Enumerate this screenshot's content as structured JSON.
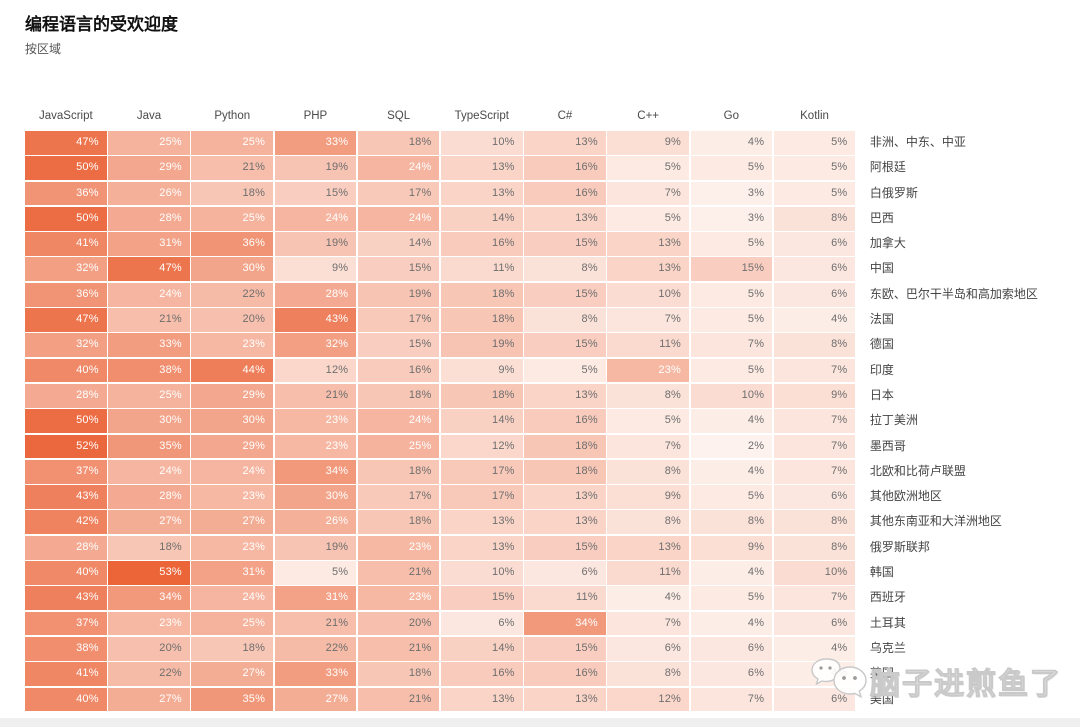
{
  "page": {
    "title": "编程语言的受欢迎度",
    "subtitle": "按区域"
  },
  "watermark": {
    "text": "脑子进煎鱼了"
  },
  "chart_data": {
    "type": "heatmap",
    "title": "编程语言的受欢迎度",
    "subtitle": "按区域",
    "unit": "%",
    "columns": [
      "JavaScript",
      "Java",
      "Python",
      "PHP",
      "SQL",
      "TypeScript",
      "C#",
      "C++",
      "Go",
      "Kotlin"
    ],
    "rows": [
      {
        "region": "非洲、中东、中亚",
        "values": [
          47,
          25,
          25,
          33,
          18,
          10,
          13,
          9,
          4,
          5
        ]
      },
      {
        "region": "阿根廷",
        "values": [
          50,
          29,
          21,
          19,
          24,
          13,
          16,
          5,
          5,
          5
        ]
      },
      {
        "region": "白俄罗斯",
        "values": [
          36,
          26,
          18,
          15,
          17,
          13,
          16,
          7,
          3,
          5
        ]
      },
      {
        "region": "巴西",
        "values": [
          50,
          28,
          25,
          24,
          24,
          14,
          13,
          5,
          3,
          8
        ]
      },
      {
        "region": "加拿大",
        "values": [
          41,
          31,
          36,
          19,
          14,
          16,
          15,
          13,
          5,
          6
        ]
      },
      {
        "region": "中国",
        "values": [
          32,
          47,
          30,
          9,
          15,
          11,
          8,
          13,
          15,
          6
        ]
      },
      {
        "region": "东欧、巴尔干半岛和高加索地区",
        "values": [
          36,
          24,
          22,
          28,
          19,
          18,
          15,
          10,
          5,
          6
        ]
      },
      {
        "region": "法国",
        "values": [
          47,
          21,
          20,
          43,
          17,
          18,
          8,
          7,
          5,
          4
        ]
      },
      {
        "region": "德国",
        "values": [
          32,
          33,
          23,
          32,
          15,
          19,
          15,
          11,
          7,
          8
        ]
      },
      {
        "region": "印度",
        "values": [
          40,
          38,
          44,
          12,
          16,
          9,
          5,
          23,
          5,
          7
        ]
      },
      {
        "region": "日本",
        "values": [
          28,
          25,
          29,
          21,
          18,
          18,
          13,
          8,
          10,
          9
        ]
      },
      {
        "region": "拉丁美洲",
        "values": [
          50,
          30,
          30,
          23,
          24,
          14,
          16,
          5,
          4,
          7
        ]
      },
      {
        "region": "墨西哥",
        "values": [
          52,
          35,
          29,
          23,
          25,
          12,
          18,
          7,
          2,
          7
        ]
      },
      {
        "region": "北欧和比荷卢联盟",
        "values": [
          37,
          24,
          24,
          34,
          18,
          17,
          18,
          8,
          4,
          7
        ]
      },
      {
        "region": "其他欧洲地区",
        "values": [
          43,
          28,
          23,
          30,
          17,
          17,
          13,
          9,
          5,
          6
        ]
      },
      {
        "region": "其他东南亚和大洋洲地区",
        "values": [
          42,
          27,
          27,
          26,
          18,
          13,
          13,
          8,
          8,
          8
        ]
      },
      {
        "region": "俄罗斯联邦",
        "values": [
          28,
          18,
          23,
          19,
          23,
          13,
          15,
          13,
          9,
          8
        ]
      },
      {
        "region": "韩国",
        "values": [
          40,
          53,
          31,
          5,
          21,
          10,
          6,
          11,
          4,
          10
        ]
      },
      {
        "region": "西班牙",
        "values": [
          43,
          34,
          24,
          31,
          23,
          15,
          11,
          4,
          5,
          7
        ]
      },
      {
        "region": "土耳其",
        "values": [
          37,
          23,
          25,
          21,
          20,
          6,
          34,
          7,
          4,
          6
        ]
      },
      {
        "region": "乌克兰",
        "values": [
          38,
          20,
          18,
          22,
          21,
          14,
          15,
          6,
          6,
          4
        ]
      },
      {
        "region": "英国",
        "values": [
          41,
          22,
          27,
          33,
          18,
          16,
          16,
          8,
          6,
          4
        ]
      },
      {
        "region": "美国",
        "values": [
          40,
          27,
          35,
          27,
          21,
          13,
          13,
          12,
          7,
          6
        ]
      }
    ],
    "color_scale": {
      "min_color": "#FEF8F5",
      "max_color": "#EA5F32",
      "domain": [
        0,
        55
      ]
    },
    "text_style": {
      "white_text_threshold": 23,
      "dark_text": "#6e6e6e",
      "light_text": "#ffffff"
    },
    "legend_position": "none",
    "grid": false
  }
}
